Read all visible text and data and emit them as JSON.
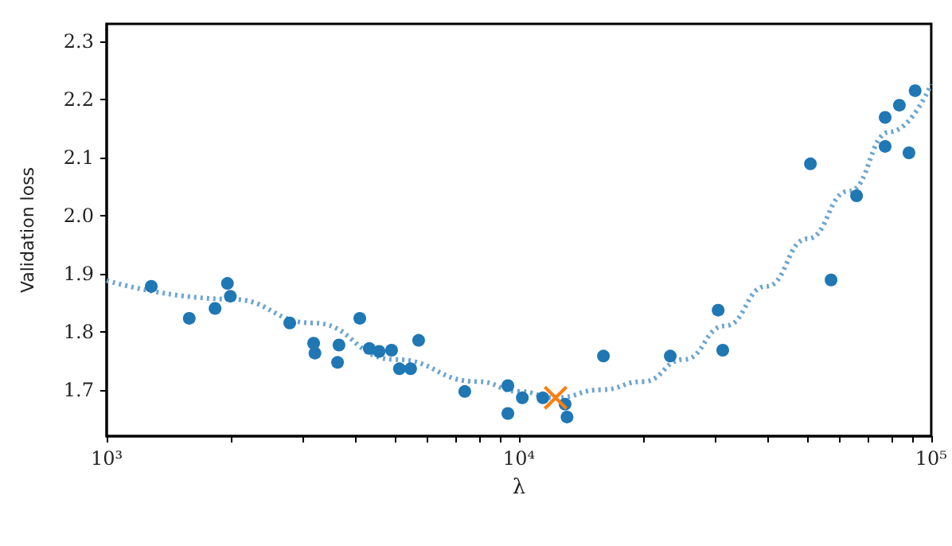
{
  "chart_data": {
    "type": "scatter",
    "xlabel": "λ",
    "ylabel": "Validation loss",
    "log": "x",
    "grid": false,
    "xlim": [
      1000,
      100000
    ],
    "ylim": [
      1.62,
      2.33
    ],
    "xticks": [
      {
        "value": 1000,
        "label": "10³"
      },
      {
        "value": 2000,
        "label": null
      },
      {
        "value": 3000,
        "label": null
      },
      {
        "value": 4000,
        "label": null
      },
      {
        "value": 5000,
        "label": null
      },
      {
        "value": 6000,
        "label": null
      },
      {
        "value": 7000,
        "label": null
      },
      {
        "value": 8000,
        "label": null
      },
      {
        "value": 9000,
        "label": null
      },
      {
        "value": 10000,
        "label": "10⁴"
      },
      {
        "value": 20000,
        "label": null
      },
      {
        "value": 30000,
        "label": null
      },
      {
        "value": 40000,
        "label": null
      },
      {
        "value": 50000,
        "label": null
      },
      {
        "value": 60000,
        "label": null
      },
      {
        "value": 70000,
        "label": null
      },
      {
        "value": 80000,
        "label": null
      },
      {
        "value": 90000,
        "label": null
      },
      {
        "value": 100000,
        "label": "10⁵"
      }
    ],
    "yticks": [
      1.7,
      1.8,
      1.9,
      {
        "value": 2,
        "label": "2.0"
      },
      2.1,
      2.2,
      2.3
    ],
    "series": [
      {
        "type": "line",
        "color": "#6fa6d0",
        "marker": "none",
        "line_style": "dotted",
        "x": [
          1000,
          2000,
          3162,
          5000,
          7943,
          10000,
          12270,
          15849,
          20000,
          25119,
          31623,
          39811,
          50119,
          63096,
          79433,
          100000
        ],
        "values": [
          1.888,
          1.856,
          1.815,
          1.752,
          1.714,
          1.697,
          1.686,
          1.7,
          1.714,
          1.752,
          1.81,
          1.878,
          1.96,
          2.042,
          2.144,
          2.226
        ]
      },
      {
        "color": "#1f77b4",
        "marker": "circle",
        "x": [
          1283,
          1586,
          1832,
          1963,
          1995,
          2780,
          3177,
          3200,
          3631,
          3660,
          4111,
          4335,
          4580,
          4910,
          5130,
          5460,
          5710,
          7390,
          9400,
          9400,
          10190,
          11430,
          12940,
          13080,
          16030,
          23280,
          30420,
          31210,
          50930,
          57150,
          65900,
          77300,
          77300,
          83700,
          88300,
          91400
        ],
        "values": [
          1.878,
          1.823,
          1.84,
          1.883,
          1.861,
          1.815,
          1.78,
          1.763,
          1.747,
          1.777,
          1.823,
          1.771,
          1.766,
          1.768,
          1.736,
          1.736,
          1.785,
          1.697,
          1.707,
          1.659,
          1.686,
          1.686,
          1.675,
          1.653,
          1.758,
          1.758,
          1.837,
          1.768,
          2.089,
          1.889,
          2.034,
          2.119,
          2.169,
          2.19,
          2.108,
          2.215
        ]
      },
      {
        "color": "#ff7f0e",
        "marker": "cross",
        "x": [
          12270
        ],
        "values": [
          1.686
        ]
      }
    ]
  }
}
